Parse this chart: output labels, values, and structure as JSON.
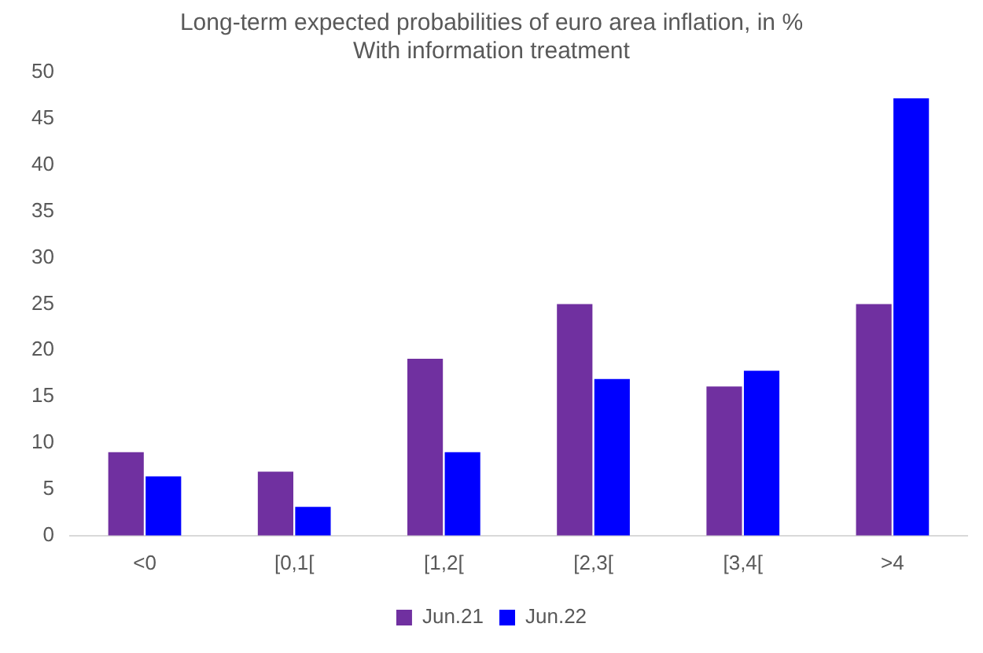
{
  "chart_data": {
    "type": "bar",
    "title": "Long-term expected probabilities of euro area inflation, in %",
    "subtitle": "With information treatment",
    "categories": [
      "<0",
      "[0,1[",
      "[1,2[",
      "[2,3[",
      "[3,4[",
      ">4"
    ],
    "series": [
      {
        "name": "Jun.21",
        "color": "#7030a0",
        "values": [
          9,
          6.9,
          19.1,
          25,
          16.1,
          25
        ]
      },
      {
        "name": "Jun.22",
        "color": "#0000ff",
        "values": [
          6.4,
          3.1,
          9,
          16.9,
          17.8,
          47.2
        ]
      }
    ],
    "ylim": [
      0,
      50
    ],
    "yticks": [
      0,
      5,
      10,
      15,
      20,
      25,
      30,
      35,
      40,
      45,
      50
    ],
    "grid": false,
    "legend": "bottom"
  }
}
